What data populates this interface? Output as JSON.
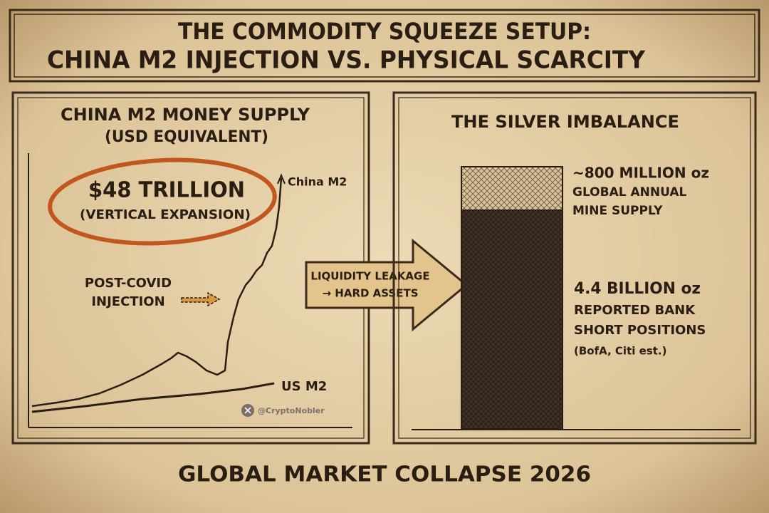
{
  "header": {
    "title_line1": "THE COMMODITY SQUEEZE SETUP:",
    "title_line2": "CHINA M2 INJECTION VS. PHYSICAL SCARCITY"
  },
  "left_panel": {
    "title": "CHINA M2 MONEY SUPPLY",
    "subtitle": "(USD EQUIVALENT)",
    "callout": {
      "value": "$48 TRILLION",
      "note": "(VERTICAL EXPANSION)"
    },
    "annotation": [
      "POST-COVID",
      "INJECTION"
    ],
    "series_labels": [
      "China M2",
      "US M2"
    ],
    "credit": "@CryptoNobler"
  },
  "arrow": {
    "line1": "LIQUIDITY LEAKAGE",
    "line2": "→ HARD ASSETS"
  },
  "right_panel": {
    "title": "THE SILVER IMBALANCE",
    "supply": {
      "amount": "~800 MILLION oz",
      "lines": [
        "GLOBAL ANNUAL",
        "MINE SUPPLY"
      ]
    },
    "shorts": {
      "amount": "4.4 BILLION oz",
      "lines": [
        "REPORTED BANK",
        "SHORT POSITIONS"
      ],
      "source": "(BofA, Citi est.)"
    }
  },
  "footer": "GLOBAL MARKET COLLAPSE 2026"
}
